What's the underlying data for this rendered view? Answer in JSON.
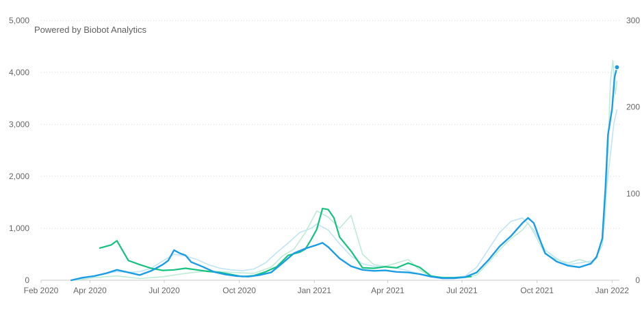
{
  "watermark": "Powered by Biobot Analytics",
  "colors": {
    "blue": "#1a9de5",
    "green": "#14c27e",
    "light_blue": "#bfe4f6",
    "light_green": "#bdebd5",
    "grid": "#d7d7d7",
    "axis_text": "#666666"
  },
  "chart_data": {
    "type": "line",
    "x_start": "2020-02-01",
    "x_ticks": [
      "Feb 2020",
      "Apr 2020",
      "Jul 2020",
      "Oct 2020",
      "Jan 2021",
      "Apr 2021",
      "Jul 2021",
      "Oct 2021",
      "Jan 2022"
    ],
    "x_tick_dates": [
      "2020-02-01",
      "2020-04-01",
      "2020-07-01",
      "2020-10-01",
      "2021-01-01",
      "2021-04-01",
      "2021-07-01",
      "2021-10-01",
      "2022-01-01"
    ],
    "x_end": "2022-01-10",
    "y_left": {
      "ticks": [
        "0",
        "1,000",
        "2,000",
        "3,000",
        "4,000",
        "5,000"
      ],
      "range": [
        0,
        5000
      ]
    },
    "y_right": {
      "ticks": [
        "0",
        "100",
        "200",
        "300"
      ],
      "range": [
        0,
        300
      ]
    },
    "grid": "horizontal-dotted",
    "series": [
      {
        "axis": "right",
        "color": "light_blue",
        "width": 1.6,
        "points": [
          [
            "2020-03-09",
            0
          ],
          [
            "2020-03-23",
            2
          ],
          [
            "2020-04-06",
            5
          ],
          [
            "2020-04-20",
            8
          ],
          [
            "2020-05-04",
            10
          ],
          [
            "2020-05-18",
            9
          ],
          [
            "2020-06-01",
            10
          ],
          [
            "2020-06-15",
            14
          ],
          [
            "2020-06-29",
            22
          ],
          [
            "2020-07-13",
            30
          ],
          [
            "2020-07-27",
            28
          ],
          [
            "2020-08-10",
            24
          ],
          [
            "2020-08-24",
            18
          ],
          [
            "2020-09-07",
            14
          ],
          [
            "2020-09-21",
            12
          ],
          [
            "2020-10-05",
            11
          ],
          [
            "2020-10-19",
            13
          ],
          [
            "2020-11-02",
            20
          ],
          [
            "2020-11-16",
            32
          ],
          [
            "2020-11-30",
            43
          ],
          [
            "2020-12-14",
            55
          ],
          [
            "2020-12-28",
            60
          ],
          [
            "2021-01-04",
            65
          ],
          [
            "2021-01-18",
            58
          ],
          [
            "2021-02-01",
            42
          ],
          [
            "2021-02-15",
            28
          ],
          [
            "2021-03-01",
            19
          ],
          [
            "2021-03-15",
            16
          ],
          [
            "2021-03-29",
            15
          ],
          [
            "2021-04-12",
            14
          ],
          [
            "2021-04-26",
            11
          ],
          [
            "2021-05-10",
            7
          ],
          [
            "2021-05-24",
            4
          ],
          [
            "2021-06-07",
            3
          ],
          [
            "2021-06-21",
            3
          ],
          [
            "2021-07-05",
            5
          ],
          [
            "2021-07-19",
            15
          ],
          [
            "2021-08-02",
            35
          ],
          [
            "2021-08-16",
            55
          ],
          [
            "2021-08-30",
            68
          ],
          [
            "2021-09-13",
            72
          ],
          [
            "2021-09-27",
            58
          ],
          [
            "2021-10-11",
            35
          ],
          [
            "2021-10-25",
            25
          ],
          [
            "2021-11-08",
            18
          ],
          [
            "2021-11-22",
            20
          ],
          [
            "2021-12-06",
            22
          ],
          [
            "2021-12-13",
            25
          ],
          [
            "2021-12-20",
            50
          ],
          [
            "2021-12-27",
            120
          ],
          [
            "2022-01-03",
            180
          ],
          [
            "2022-01-07",
            197
          ]
        ]
      },
      {
        "axis": "right",
        "color": "light_green",
        "width": 1.6,
        "points": [
          [
            "2020-03-16",
            0
          ],
          [
            "2020-04-06",
            3
          ],
          [
            "2020-05-04",
            5
          ],
          [
            "2020-06-01",
            2
          ],
          [
            "2020-06-29",
            4
          ],
          [
            "2020-07-27",
            8
          ],
          [
            "2020-08-24",
            11
          ],
          [
            "2020-09-21",
            9
          ],
          [
            "2020-10-19",
            8
          ],
          [
            "2020-11-09",
            15
          ],
          [
            "2020-11-23",
            28
          ],
          [
            "2020-12-07",
            36
          ],
          [
            "2020-12-21",
            55
          ],
          [
            "2021-01-04",
            80
          ],
          [
            "2021-01-18",
            73
          ],
          [
            "2021-02-01",
            60
          ],
          [
            "2021-02-15",
            75
          ],
          [
            "2021-03-01",
            30
          ],
          [
            "2021-03-15",
            18
          ],
          [
            "2021-03-29",
            16
          ],
          [
            "2021-04-12",
            20
          ],
          [
            "2021-04-26",
            24
          ],
          [
            "2021-05-10",
            12
          ],
          [
            "2021-05-24",
            4
          ],
          [
            "2021-06-07",
            2
          ],
          [
            "2021-06-21",
            2
          ],
          [
            "2021-07-05",
            3
          ],
          [
            "2021-07-19",
            6
          ],
          [
            "2021-08-02",
            20
          ],
          [
            "2021-08-16",
            35
          ],
          [
            "2021-08-30",
            48
          ],
          [
            "2021-09-13",
            58
          ],
          [
            "2021-09-20",
            66
          ],
          [
            "2021-09-27",
            55
          ],
          [
            "2021-10-11",
            30
          ],
          [
            "2021-10-25",
            24
          ],
          [
            "2021-11-08",
            20
          ],
          [
            "2021-11-22",
            24
          ],
          [
            "2021-12-06",
            20
          ],
          [
            "2021-12-13",
            28
          ],
          [
            "2021-12-20",
            40
          ],
          [
            "2021-12-24",
            80
          ],
          [
            "2021-12-27",
            150
          ],
          [
            "2021-12-30",
            230
          ],
          [
            "2022-01-02",
            254
          ],
          [
            "2022-01-05",
            215
          ],
          [
            "2022-01-07",
            230
          ]
        ]
      },
      {
        "axis": "left",
        "color": "green",
        "width": 2.2,
        "points": [
          [
            "2020-04-13",
            620
          ],
          [
            "2020-04-27",
            680
          ],
          [
            "2020-05-04",
            760
          ],
          [
            "2020-05-18",
            380
          ],
          [
            "2020-06-01",
            300
          ],
          [
            "2020-06-15",
            230
          ],
          [
            "2020-06-29",
            190
          ],
          [
            "2020-07-13",
            200
          ],
          [
            "2020-07-27",
            230
          ],
          [
            "2020-08-10",
            200
          ],
          [
            "2020-08-24",
            170
          ],
          [
            "2020-09-07",
            150
          ],
          [
            "2020-09-21",
            110
          ],
          [
            "2020-10-05",
            70
          ],
          [
            "2020-10-19",
            90
          ],
          [
            "2020-11-02",
            160
          ],
          [
            "2020-11-16",
            260
          ],
          [
            "2020-11-30",
            480
          ],
          [
            "2020-12-14",
            540
          ],
          [
            "2020-12-21",
            600
          ],
          [
            "2020-12-28",
            780
          ],
          [
            "2021-01-04",
            980
          ],
          [
            "2021-01-11",
            1380
          ],
          [
            "2021-01-18",
            1360
          ],
          [
            "2021-01-25",
            1200
          ],
          [
            "2021-02-01",
            830
          ],
          [
            "2021-02-15",
            560
          ],
          [
            "2021-03-01",
            240
          ],
          [
            "2021-03-15",
            230
          ],
          [
            "2021-03-29",
            260
          ],
          [
            "2021-04-12",
            240
          ],
          [
            "2021-04-26",
            330
          ],
          [
            "2021-05-10",
            250
          ],
          [
            "2021-05-24",
            80
          ],
          [
            "2021-06-07",
            50
          ],
          [
            "2021-06-21",
            50
          ],
          [
            "2021-07-05",
            60
          ],
          [
            "2021-07-12",
            70
          ]
        ]
      },
      {
        "axis": "left",
        "color": "blue",
        "width": 2.4,
        "points": [
          [
            "2020-03-09",
            0
          ],
          [
            "2020-03-23",
            50
          ],
          [
            "2020-04-06",
            80
          ],
          [
            "2020-04-20",
            130
          ],
          [
            "2020-05-04",
            200
          ],
          [
            "2020-05-18",
            150
          ],
          [
            "2020-06-01",
            100
          ],
          [
            "2020-06-15",
            180
          ],
          [
            "2020-06-29",
            300
          ],
          [
            "2020-07-06",
            380
          ],
          [
            "2020-07-13",
            580
          ],
          [
            "2020-07-20",
            520
          ],
          [
            "2020-07-27",
            480
          ],
          [
            "2020-08-03",
            350
          ],
          [
            "2020-08-17",
            260
          ],
          [
            "2020-08-31",
            160
          ],
          [
            "2020-09-14",
            110
          ],
          [
            "2020-09-28",
            80
          ],
          [
            "2020-10-12",
            70
          ],
          [
            "2020-10-26",
            100
          ],
          [
            "2020-11-09",
            150
          ],
          [
            "2020-11-23",
            330
          ],
          [
            "2020-12-07",
            520
          ],
          [
            "2020-12-21",
            610
          ],
          [
            "2021-01-04",
            680
          ],
          [
            "2021-01-11",
            720
          ],
          [
            "2021-01-18",
            640
          ],
          [
            "2021-02-01",
            420
          ],
          [
            "2021-02-15",
            270
          ],
          [
            "2021-03-01",
            200
          ],
          [
            "2021-03-15",
            180
          ],
          [
            "2021-03-29",
            190
          ],
          [
            "2021-04-12",
            160
          ],
          [
            "2021-04-26",
            150
          ],
          [
            "2021-05-10",
            120
          ],
          [
            "2021-05-24",
            70
          ],
          [
            "2021-06-07",
            40
          ],
          [
            "2021-06-21",
            40
          ],
          [
            "2021-07-05",
            60
          ],
          [
            "2021-07-19",
            150
          ],
          [
            "2021-08-02",
            380
          ],
          [
            "2021-08-16",
            650
          ],
          [
            "2021-08-30",
            850
          ],
          [
            "2021-09-13",
            1100
          ],
          [
            "2021-09-20",
            1200
          ],
          [
            "2021-09-27",
            1100
          ],
          [
            "2021-10-04",
            800
          ],
          [
            "2021-10-11",
            520
          ],
          [
            "2021-10-25",
            360
          ],
          [
            "2021-11-08",
            280
          ],
          [
            "2021-11-22",
            250
          ],
          [
            "2021-12-06",
            320
          ],
          [
            "2021-12-13",
            450
          ],
          [
            "2021-12-20",
            800
          ],
          [
            "2021-12-24",
            1800
          ],
          [
            "2021-12-27",
            2800
          ],
          [
            "2022-01-01",
            3300
          ],
          [
            "2022-01-04",
            3900
          ],
          [
            "2022-01-07",
            4100
          ]
        ],
        "end_marker": true
      }
    ]
  }
}
